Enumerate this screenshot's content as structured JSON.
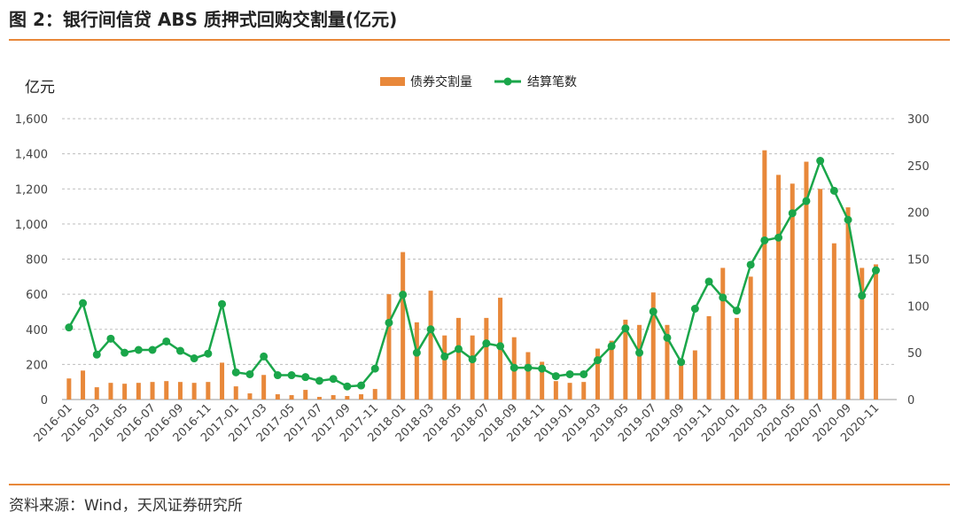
{
  "header": {
    "title": "图 2：银行间信贷 ABS 质押式回购交割量(亿元)"
  },
  "footer": {
    "source": "资料来源：Wind，天风证券研究所"
  },
  "colors": {
    "bar": "#e8883a",
    "line": "#1aa64a",
    "accent_rule": "#e8883a",
    "grid": "#bdbdbd"
  },
  "chart_data": {
    "type": "bar+line",
    "unit_label": "亿元",
    "categories": [
      "2016-01",
      "2016-02",
      "2016-03",
      "2016-04",
      "2016-05",
      "2016-06",
      "2016-07",
      "2016-08",
      "2016-09",
      "2016-10",
      "2016-11",
      "2016-12",
      "2017-01",
      "2017-02",
      "2017-03",
      "2017-04",
      "2017-05",
      "2017-06",
      "2017-07",
      "2017-08",
      "2017-09",
      "2017-10",
      "2017-11",
      "2017-12",
      "2018-01",
      "2018-02",
      "2018-03",
      "2018-04",
      "2018-05",
      "2018-06",
      "2018-07",
      "2018-08",
      "2018-09",
      "2018-10",
      "2018-11",
      "2018-12",
      "2019-01",
      "2019-02",
      "2019-03",
      "2019-04",
      "2019-05",
      "2019-06",
      "2019-07",
      "2019-08",
      "2019-09",
      "2019-10",
      "2019-11",
      "2019-12",
      "2020-01",
      "2020-02",
      "2020-03",
      "2020-04",
      "2020-05",
      "2020-06",
      "2020-07",
      "2020-08",
      "2020-09",
      "2020-10",
      "2020-11",
      "2020-12"
    ],
    "x_tick_labels": [
      "2016-01",
      "2016-03",
      "2016-05",
      "2016-07",
      "2016-09",
      "2016-11",
      "2017-01",
      "2017-03",
      "2017-05",
      "2017-07",
      "2017-09",
      "2017-11",
      "2018-01",
      "2018-03",
      "2018-05",
      "2018-07",
      "2018-09",
      "2018-11",
      "2019-01",
      "2019-03",
      "2019-05",
      "2019-07",
      "2019-09",
      "2019-11",
      "2020-01",
      "2020-03",
      "2020-05",
      "2020-07",
      "2020-09",
      "2020-11"
    ],
    "left_axis": {
      "ylim": [
        0,
        1600
      ],
      "ticks": [
        "0",
        "200",
        "400",
        "600",
        "800",
        "1,000",
        "1,200",
        "1,400",
        "1,600"
      ],
      "tick_values": [
        0,
        200,
        400,
        600,
        800,
        1000,
        1200,
        1400,
        1600
      ]
    },
    "right_axis": {
      "ylim": [
        0,
        300
      ],
      "ticks": [
        "0",
        "50",
        "100",
        "150",
        "200",
        "250",
        "300"
      ],
      "tick_values": [
        0,
        50,
        100,
        150,
        200,
        250,
        300
      ]
    },
    "grid": true,
    "legend_position": "top-center",
    "series": [
      {
        "name": "债券交割量",
        "type": "bar",
        "axis": "left",
        "values": [
          120,
          165,
          70,
          95,
          90,
          95,
          100,
          105,
          100,
          95,
          100,
          210,
          75,
          35,
          140,
          30,
          25,
          55,
          15,
          25,
          20,
          30,
          60,
          600,
          840,
          440,
          620,
          365,
          465,
          365,
          465,
          580,
          355,
          270,
          215,
          105,
          95,
          100,
          290,
          335,
          455,
          425,
          610,
          425,
          215,
          280,
          475,
          750,
          465,
          700,
          1420,
          1280,
          1230,
          1355,
          1200,
          890,
          1095,
          750,
          770,
          0
        ]
      },
      {
        "name": "结算笔数",
        "type": "line",
        "axis": "right",
        "values": [
          77,
          103,
          48,
          65,
          50,
          53,
          53,
          62,
          52,
          44,
          49,
          102,
          29,
          27,
          46,
          26,
          26,
          24,
          20,
          22,
          14,
          15,
          33,
          82,
          112,
          50,
          75,
          46,
          54,
          43,
          60,
          57,
          34,
          34,
          33,
          25,
          27,
          27,
          42,
          57,
          76,
          50,
          94,
          66,
          40,
          97,
          126,
          109,
          95,
          144,
          170,
          173,
          199,
          212,
          255,
          223,
          192,
          111,
          138,
          0
        ]
      }
    ]
  }
}
